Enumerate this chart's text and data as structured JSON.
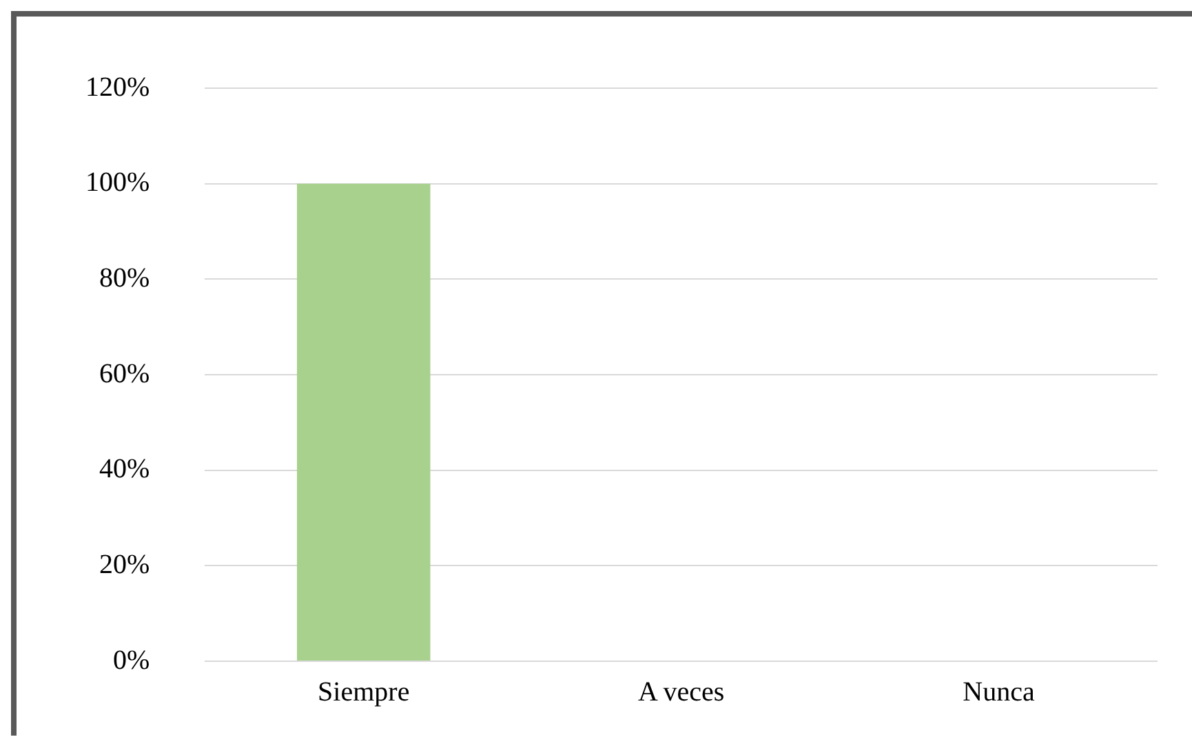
{
  "chart_data": {
    "type": "bar",
    "categories": [
      "Siempre",
      "A veces",
      "Nunca"
    ],
    "values": [
      100,
      0,
      0
    ],
    "color": "#a9d18e",
    "ylim": [
      0,
      120
    ],
    "yticks": [
      {
        "value": 0,
        "label": "0%"
      },
      {
        "value": 20,
        "label": "20%"
      },
      {
        "value": 40,
        "label": "40%"
      },
      {
        "value": 60,
        "label": "60%"
      },
      {
        "value": 80,
        "label": "80%"
      },
      {
        "value": 100,
        "label": "100%"
      },
      {
        "value": 120,
        "label": "120%"
      }
    ],
    "grid": "y",
    "legend": false
  }
}
